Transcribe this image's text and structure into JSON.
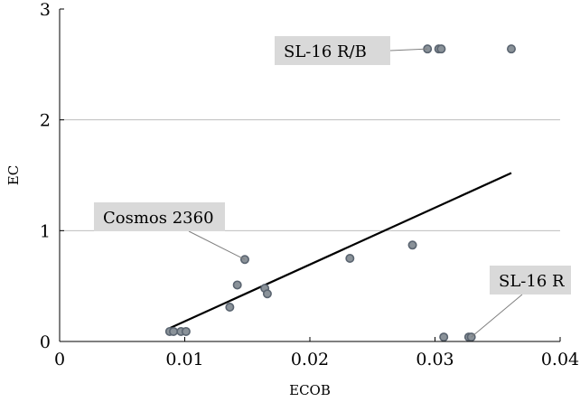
{
  "chart_data": {
    "type": "scatter",
    "title": "",
    "xlabel": "ECOB",
    "ylabel": "EC",
    "xlim": [
      0,
      0.04
    ],
    "ylim": [
      0,
      3
    ],
    "x_ticks": [
      {
        "value": 0,
        "label": "0"
      },
      {
        "value": 0.01,
        "label": "0.01"
      },
      {
        "value": 0.02,
        "label": "0.02"
      },
      {
        "value": 0.03,
        "label": "0.03"
      },
      {
        "value": 0.04,
        "label": "0.04"
      }
    ],
    "y_ticks": [
      {
        "value": 0,
        "label": "0"
      },
      {
        "value": 1,
        "label": "1"
      },
      {
        "value": 2,
        "label": "2"
      },
      {
        "value": 3,
        "label": "3"
      }
    ],
    "grid": "horizontal",
    "points": [
      {
        "x": 0.0088,
        "y": 0.09
      },
      {
        "x": 0.0091,
        "y": 0.09
      },
      {
        "x": 0.0097,
        "y": 0.09
      },
      {
        "x": 0.0101,
        "y": 0.09
      },
      {
        "x": 0.0136,
        "y": 0.31
      },
      {
        "x": 0.0142,
        "y": 0.51
      },
      {
        "x": 0.0148,
        "y": 0.74
      },
      {
        "x": 0.0164,
        "y": 0.48
      },
      {
        "x": 0.0166,
        "y": 0.43
      },
      {
        "x": 0.0232,
        "y": 0.75
      },
      {
        "x": 0.0282,
        "y": 0.87
      },
      {
        "x": 0.0294,
        "y": 2.64
      },
      {
        "x": 0.0303,
        "y": 2.64
      },
      {
        "x": 0.0305,
        "y": 2.64
      },
      {
        "x": 0.0307,
        "y": 0.04
      },
      {
        "x": 0.0327,
        "y": 0.04
      },
      {
        "x": 0.0329,
        "y": 0.04
      },
      {
        "x": 0.0361,
        "y": 2.64
      }
    ],
    "fit_line": {
      "x1": 0.0088,
      "y1": 0.12,
      "x2": 0.0361,
      "y2": 1.52
    },
    "annotations": [
      {
        "label": "SL-16 R/B",
        "x": 0.0294,
        "y": 2.64
      },
      {
        "label": "Cosmos 2360",
        "x": 0.0148,
        "y": 0.74
      },
      {
        "label": "SL-16 R",
        "x": 0.0329,
        "y": 0.04
      }
    ],
    "colors": {
      "point_fill": "#8a9299",
      "point_stroke": "#5a6470",
      "label_box": "#d9d9d9",
      "grid": "#b3b3b3",
      "fit_line": "#000000"
    }
  }
}
